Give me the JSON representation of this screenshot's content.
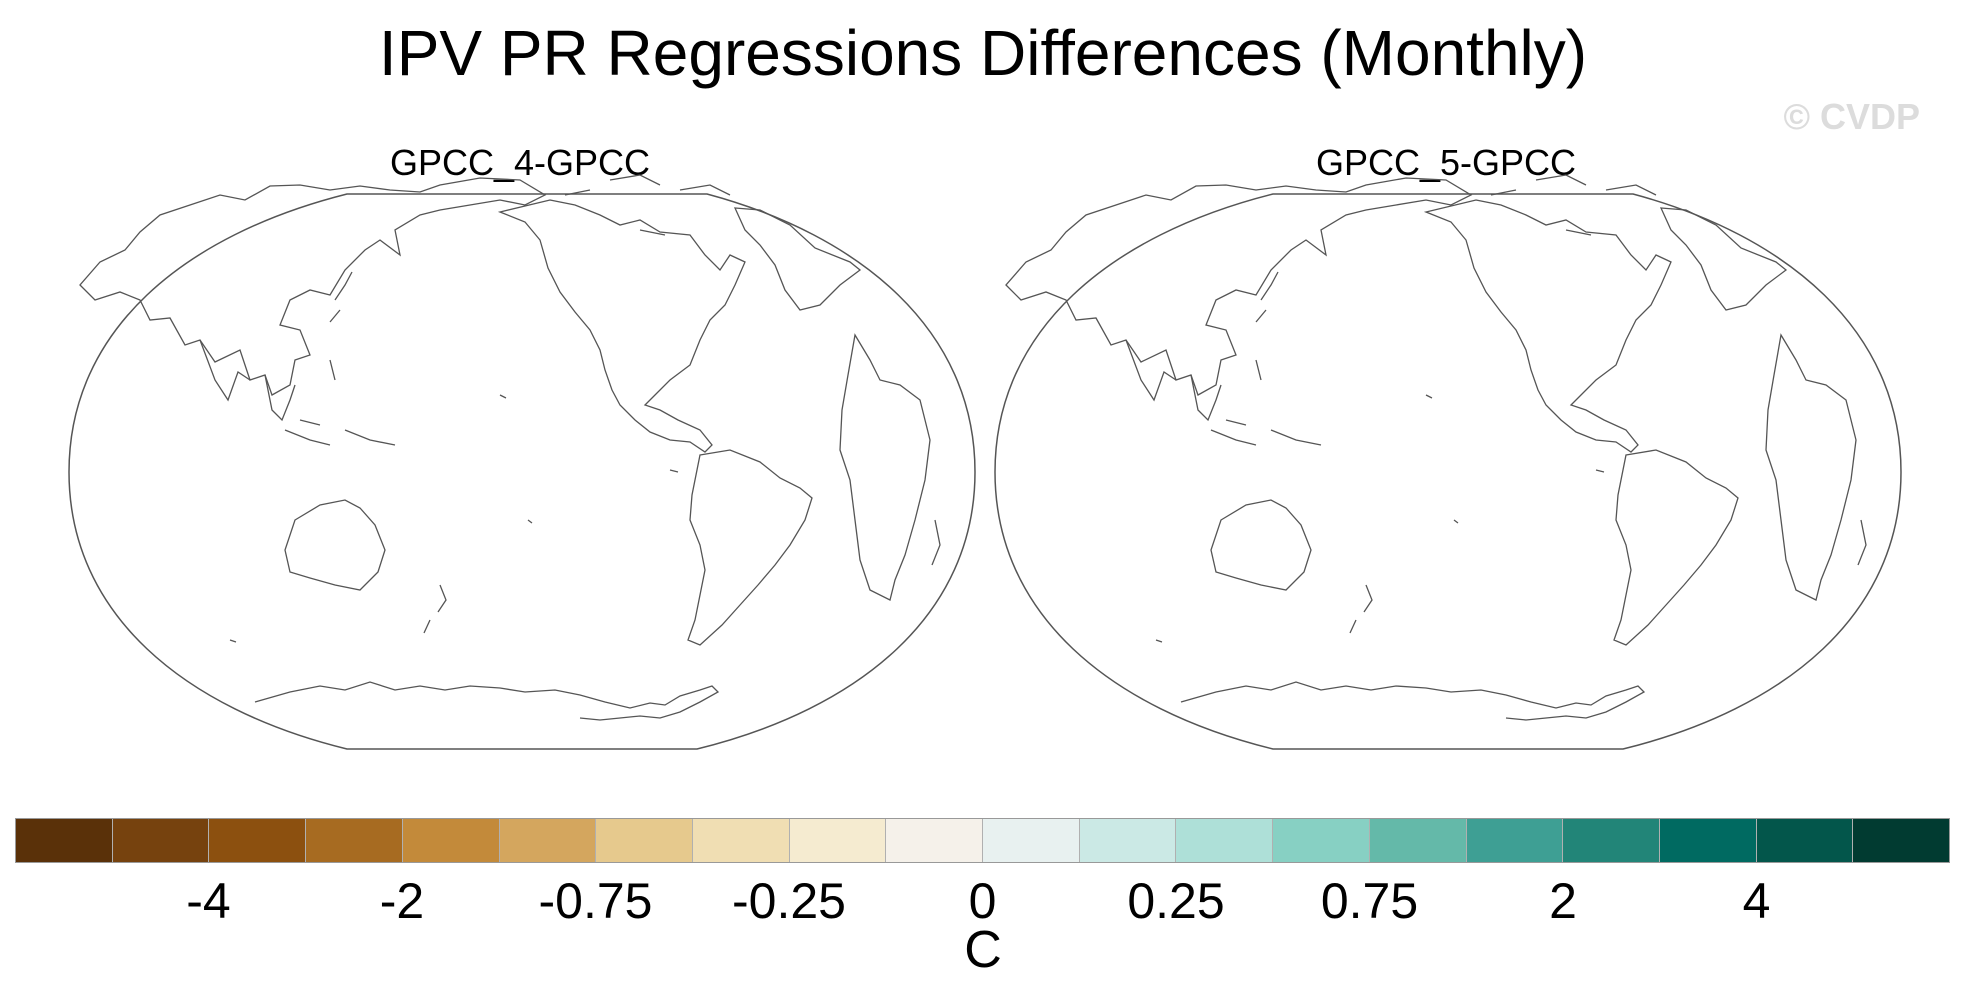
{
  "figure": {
    "title": "IPV PR Regressions Differences (Monthly)",
    "watermark": "© CVDP",
    "units": "C"
  },
  "panels": [
    {
      "title": "GPCC_4-GPCC"
    },
    {
      "title": "GPCC_5-GPCC"
    }
  ],
  "colorbar": {
    "colors": [
      "#5a3109",
      "#76420e",
      "#8c500f",
      "#a76b21",
      "#c38a3a",
      "#d4a65e",
      "#e6c98d",
      "#f0deb3",
      "#f5ebd0",
      "#f5f1ea",
      "#e8f1f0",
      "#cbe9e5",
      "#aee0d8",
      "#87d0c3",
      "#64b9a9",
      "#3e9f94",
      "#228578",
      "#006a61",
      "#03564b",
      "#013b31"
    ],
    "tick_labels": [
      "-4",
      "-2",
      "-0.75",
      "-0.25",
      "0",
      "0.25",
      "0.75",
      "2",
      "4"
    ],
    "tick_boundaries": [
      2,
      4,
      6,
      8,
      10,
      12,
      14,
      16,
      18
    ]
  }
}
